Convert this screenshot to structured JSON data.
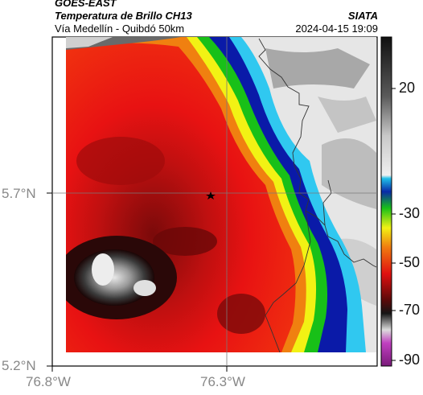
{
  "header": {
    "satellite": "GOES-EAST",
    "product": "Temperatura de Brillo CH13",
    "location": "Vía Medellín - Quibdó 50km",
    "org": "SIATA",
    "datetime": "2024-04-15 19:09"
  },
  "axes": {
    "lat_labels": [
      "5.7°N",
      "5.2°N"
    ],
    "lon_labels": [
      "76.8°W",
      "76.3°W"
    ]
  },
  "colorbar": {
    "labels": [
      "20",
      "-30",
      "-50",
      "-70",
      "-90"
    ]
  },
  "marker": {
    "symbol": "★"
  },
  "colors": {
    "frame": "#000000",
    "gridline": "#7a7a7a",
    "accent_red": "#e01010",
    "accent_blue": "#0a1aa8",
    "accent_green": "#18c018",
    "accent_yellow": "#f2f214"
  }
}
